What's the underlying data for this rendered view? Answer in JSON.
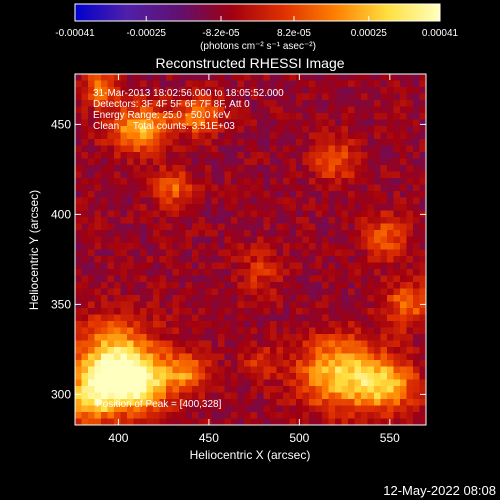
{
  "chart_data": {
    "type": "heatmap",
    "title": "Reconstructed RHESSI Image",
    "xlabel": "Heliocentric X (arcsec)",
    "ylabel": "Heliocentric Y (arcsec)",
    "xlim": [
      376,
      570
    ],
    "ylim": [
      283,
      478
    ],
    "xticks": [
      400,
      450,
      500,
      550
    ],
    "yticks": [
      300,
      350,
      400,
      450
    ],
    "colorbar": {
      "range": [
        -0.00041,
        0.00041
      ],
      "tick_values": [
        -0.00041,
        -0.00025,
        -8.2e-05,
        8.2e-05,
        0.00025,
        0.00041
      ],
      "tick_labels": [
        "-0.00041",
        "-0.00025",
        "-8.2e-05",
        "8.2e-05",
        "0.00025",
        "0.00041"
      ],
      "units_label": "(photons cm⁻² s⁻¹ asec⁻²)",
      "colormap": [
        "#0000cc",
        "#5020a8",
        "#601070",
        "#a00010",
        "#e03000",
        "#ff8000",
        "#ffe040",
        "#ffffc0"
      ]
    },
    "annotations": [
      "31-Mar-2013 18:02:56.000 to 18:05:52.000",
      "Detectors: 3F 4F 5F 6F 7F 8F, Att 0",
      "Energy Range: 25.0 - 50.0 keV",
      "Clean     Total counts: 3.51E+03",
      "Position of Peak = [400,328]"
    ],
    "peak": [
      400,
      328
    ],
    "hot_regions": [
      {
        "x": 398,
        "y": 318,
        "sx": 16,
        "sy": 15,
        "amp": 0.00041
      },
      {
        "x": 410,
        "y": 305,
        "sx": 12,
        "sy": 10,
        "amp": 0.00036
      },
      {
        "x": 385,
        "y": 298,
        "sx": 9,
        "sy": 10,
        "amp": 0.00031
      },
      {
        "x": 438,
        "y": 312,
        "sx": 9,
        "sy": 8,
        "amp": 0.00024
      },
      {
        "x": 522,
        "y": 312,
        "sx": 16,
        "sy": 14,
        "amp": 0.00035
      },
      {
        "x": 548,
        "y": 305,
        "sx": 12,
        "sy": 10,
        "amp": 0.0003
      },
      {
        "x": 560,
        "y": 350,
        "sx": 9,
        "sy": 9,
        "amp": 0.00022
      },
      {
        "x": 412,
        "y": 448,
        "sx": 12,
        "sy": 9,
        "amp": 0.00032
      },
      {
        "x": 445,
        "y": 455,
        "sx": 8,
        "sy": 7,
        "amp": 0.00026
      },
      {
        "x": 430,
        "y": 415,
        "sx": 8,
        "sy": 7,
        "amp": 0.00021
      },
      {
        "x": 390,
        "y": 470,
        "sx": 7,
        "sy": 7,
        "amp": 0.00022
      },
      {
        "x": 520,
        "y": 430,
        "sx": 9,
        "sy": 9,
        "amp": 0.00018
      },
      {
        "x": 548,
        "y": 388,
        "sx": 9,
        "sy": 9,
        "amp": 0.00018
      },
      {
        "x": 478,
        "y": 368,
        "sx": 8,
        "sy": 10,
        "amp": 0.00012
      },
      {
        "x": 478,
        "y": 318,
        "sx": 7,
        "sy": 7,
        "amp": 0.00012
      }
    ]
  },
  "footer": {
    "timestamp": "12-May-2022 08:08"
  }
}
